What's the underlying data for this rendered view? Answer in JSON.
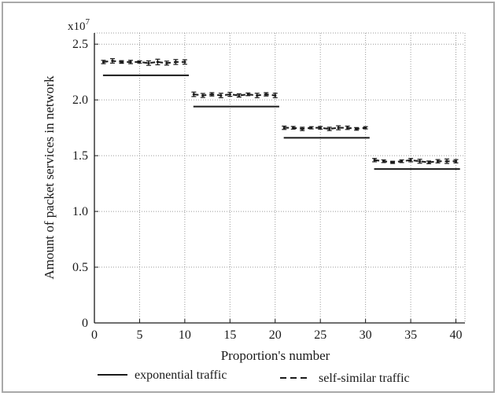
{
  "chart_data": {
    "type": "line",
    "title": "",
    "xlabel": "Proportion's number",
    "ylabel": "Amount of packet services in network",
    "xlim": [
      0,
      41
    ],
    "ylim": [
      0,
      2.6
    ],
    "y_multiplier": "x10",
    "y_multiplier_exp": "7",
    "x_ticks": [
      "0",
      "5",
      "10",
      "15",
      "20",
      "25",
      "30",
      "35",
      "40"
    ],
    "y_ticks": [
      "0",
      "0.5",
      "1.0",
      "1.5",
      "2.0",
      "2.5"
    ],
    "grid": true,
    "legend_position": "bottom",
    "series": [
      {
        "name": "exponential traffic",
        "style": "solid",
        "segments": [
          {
            "x": [
              1,
              10
            ],
            "y": 2.22
          },
          {
            "x": [
              11,
              20
            ],
            "y": 1.94
          },
          {
            "x": [
              21,
              30
            ],
            "y": 1.66
          },
          {
            "x": [
              31,
              40
            ],
            "y": 1.38
          }
        ]
      },
      {
        "name": "self-similar traffic",
        "style": "dashed",
        "with_error_bars": true,
        "x": [
          1,
          2,
          3,
          4,
          5,
          6,
          7,
          8,
          9,
          10,
          11,
          12,
          13,
          14,
          15,
          16,
          17,
          18,
          19,
          20,
          21,
          22,
          23,
          24,
          25,
          26,
          27,
          28,
          29,
          30,
          31,
          32,
          33,
          34,
          35,
          36,
          37,
          38,
          39,
          40
        ],
        "y": [
          2.34,
          2.35,
          2.34,
          2.34,
          2.34,
          2.33,
          2.34,
          2.33,
          2.34,
          2.34,
          2.05,
          2.04,
          2.05,
          2.04,
          2.05,
          2.04,
          2.05,
          2.04,
          2.05,
          2.04,
          1.75,
          1.75,
          1.74,
          1.75,
          1.75,
          1.74,
          1.75,
          1.75,
          1.74,
          1.75,
          1.46,
          1.45,
          1.44,
          1.45,
          1.46,
          1.45,
          1.44,
          1.45,
          1.45,
          1.45
        ],
        "err": [
          0.015,
          0.02,
          0.012,
          0.015,
          0.01,
          0.02,
          0.025,
          0.018,
          0.022,
          0.02,
          0.02,
          0.018,
          0.015,
          0.02,
          0.018,
          0.015,
          0.012,
          0.02,
          0.015,
          0.02,
          0.015,
          0.012,
          0.015,
          0.01,
          0.012,
          0.015,
          0.018,
          0.015,
          0.012,
          0.01,
          0.015,
          0.012,
          0.01,
          0.012,
          0.015,
          0.018,
          0.012,
          0.015,
          0.02,
          0.015
        ]
      }
    ]
  },
  "colors": {
    "line": "#1a1a1a",
    "grid": "#9a9a9a",
    "frame": "#a9a9a9"
  }
}
